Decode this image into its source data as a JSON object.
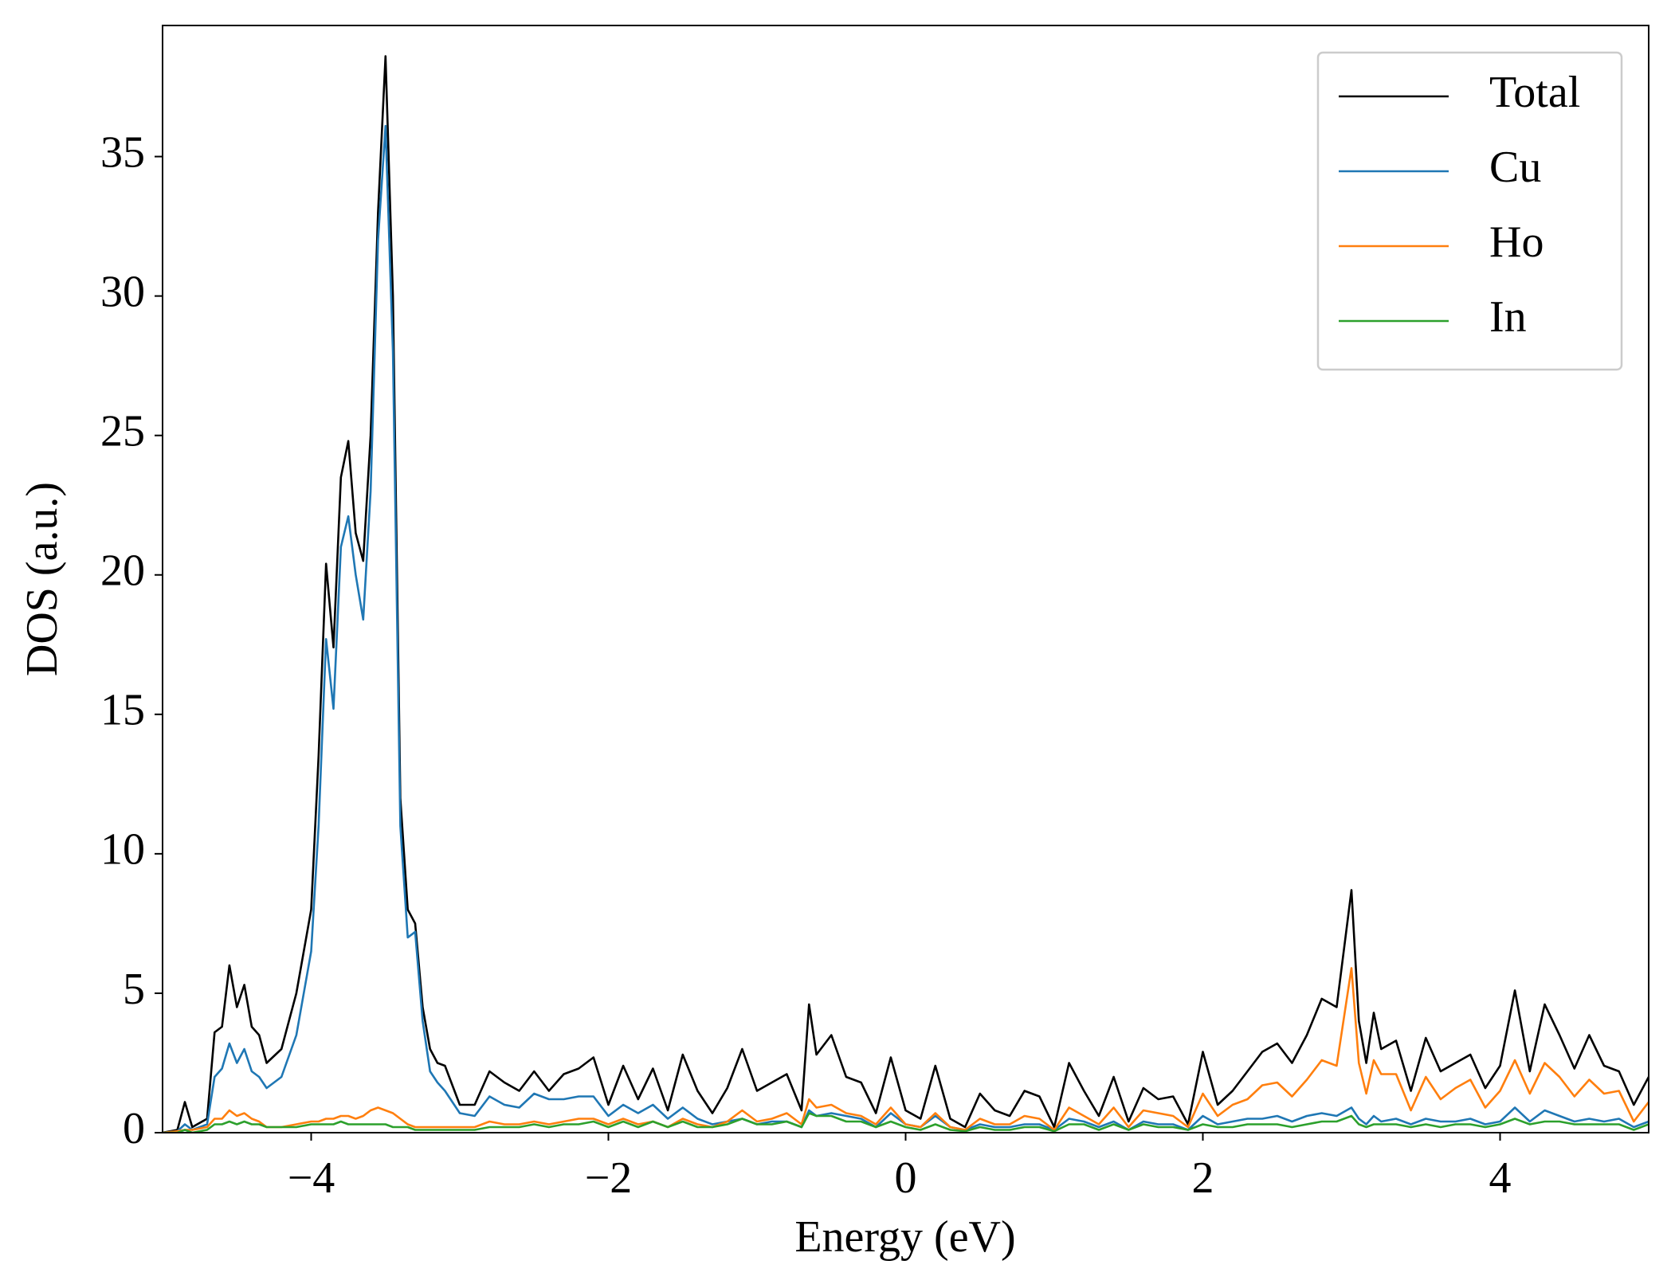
{
  "chart_data": {
    "type": "line",
    "xlabel": "Energy (eV)",
    "ylabel": "DOS (a.u.)",
    "xlim": [
      -5,
      5
    ],
    "ylim": [
      0,
      39.7
    ],
    "xticks": [
      {
        "value": -4,
        "label": "−4"
      },
      {
        "value": -2,
        "label": "−2"
      },
      0,
      2,
      4
    ],
    "yticks": [
      0,
      5,
      10,
      15,
      20,
      25,
      30,
      35
    ],
    "legend": "upper right",
    "x": [
      -5.0,
      -4.9,
      -4.85,
      -4.8,
      -4.7,
      -4.65,
      -4.6,
      -4.55,
      -4.5,
      -4.45,
      -4.4,
      -4.35,
      -4.3,
      -4.2,
      -4.1,
      -4.0,
      -3.95,
      -3.9,
      -3.85,
      -3.8,
      -3.75,
      -3.7,
      -3.65,
      -3.6,
      -3.55,
      -3.5,
      -3.45,
      -3.4,
      -3.35,
      -3.3,
      -3.25,
      -3.2,
      -3.15,
      -3.1,
      -3.0,
      -2.9,
      -2.8,
      -2.7,
      -2.6,
      -2.5,
      -2.4,
      -2.3,
      -2.2,
      -2.1,
      -2.0,
      -1.9,
      -1.8,
      -1.7,
      -1.6,
      -1.5,
      -1.4,
      -1.3,
      -1.2,
      -1.1,
      -1.0,
      -0.9,
      -0.8,
      -0.7,
      -0.65,
      -0.6,
      -0.5,
      -0.4,
      -0.3,
      -0.2,
      -0.1,
      0.0,
      0.1,
      0.2,
      0.3,
      0.4,
      0.5,
      0.6,
      0.7,
      0.8,
      0.9,
      1.0,
      1.1,
      1.2,
      1.3,
      1.4,
      1.5,
      1.6,
      1.7,
      1.8,
      1.9,
      2.0,
      2.1,
      2.2,
      2.3,
      2.4,
      2.5,
      2.6,
      2.7,
      2.8,
      2.9,
      3.0,
      3.05,
      3.1,
      3.15,
      3.2,
      3.3,
      3.4,
      3.5,
      3.6,
      3.7,
      3.8,
      3.9,
      4.0,
      4.1,
      4.2,
      4.3,
      4.4,
      4.5,
      4.6,
      4.7,
      4.8,
      4.9,
      5.0
    ],
    "series": [
      {
        "name": "Total",
        "color": "#000000",
        "values": [
          0,
          0.1,
          1.1,
          0.2,
          0.5,
          3.6,
          3.8,
          6.0,
          4.5,
          5.3,
          3.8,
          3.5,
          2.5,
          3.0,
          5.0,
          8.0,
          13.5,
          20.4,
          17.4,
          23.5,
          24.8,
          21.5,
          20.5,
          25,
          33,
          38.6,
          30,
          12,
          8.0,
          7.5,
          4.5,
          3.0,
          2.5,
          2.4,
          1.0,
          1.0,
          2.2,
          1.8,
          1.5,
          2.2,
          1.5,
          2.1,
          2.3,
          2.7,
          1.0,
          2.4,
          1.2,
          2.3,
          0.8,
          2.8,
          1.5,
          0.7,
          1.6,
          3.0,
          1.5,
          1.8,
          2.1,
          0.8,
          4.6,
          2.8,
          3.5,
          2.0,
          1.8,
          0.7,
          2.7,
          0.8,
          0.5,
          2.4,
          0.5,
          0.2,
          1.4,
          0.8,
          0.6,
          1.5,
          1.3,
          0.2,
          2.5,
          1.5,
          0.6,
          2.0,
          0.4,
          1.6,
          1.2,
          1.3,
          0.3,
          2.9,
          1.0,
          1.5,
          2.2,
          2.9,
          3.2,
          2.5,
          3.5,
          4.8,
          4.5,
          8.7,
          4.0,
          2.5,
          4.3,
          3.0,
          3.3,
          1.5,
          3.4,
          2.2,
          2.5,
          2.8,
          1.6,
          2.4,
          5.1,
          2.2,
          4.6,
          3.5,
          2.3,
          3.5,
          2.4,
          2.2,
          1.0,
          2.0
        ]
      },
      {
        "name": "Cu",
        "color": "#1f77b4",
        "values": [
          0,
          0.05,
          0.3,
          0.1,
          0.3,
          2.0,
          2.3,
          3.2,
          2.5,
          3.0,
          2.2,
          2.0,
          1.6,
          2.0,
          3.5,
          6.5,
          11,
          17.7,
          15.2,
          21,
          22.1,
          20,
          18.4,
          23,
          32,
          36.1,
          28,
          11,
          7.0,
          7.2,
          4.0,
          2.2,
          1.8,
          1.5,
          0.7,
          0.6,
          1.3,
          1.0,
          0.9,
          1.4,
          1.2,
          1.2,
          1.3,
          1.3,
          0.6,
          1.0,
          0.7,
          1.0,
          0.5,
          0.9,
          0.5,
          0.3,
          0.4,
          0.5,
          0.3,
          0.4,
          0.4,
          0.2,
          0.8,
          0.6,
          0.7,
          0.6,
          0.5,
          0.2,
          0.7,
          0.3,
          0.2,
          0.6,
          0.2,
          0.1,
          0.3,
          0.2,
          0.2,
          0.3,
          0.3,
          0.1,
          0.5,
          0.4,
          0.2,
          0.4,
          0.1,
          0.4,
          0.3,
          0.3,
          0.1,
          0.6,
          0.3,
          0.4,
          0.5,
          0.5,
          0.6,
          0.4,
          0.6,
          0.7,
          0.6,
          0.9,
          0.5,
          0.3,
          0.6,
          0.4,
          0.5,
          0.3,
          0.5,
          0.4,
          0.4,
          0.5,
          0.3,
          0.4,
          0.9,
          0.4,
          0.8,
          0.6,
          0.4,
          0.5,
          0.4,
          0.5,
          0.2,
          0.4
        ]
      },
      {
        "name": "Ho",
        "color": "#ff7f0e",
        "values": [
          0,
          0.05,
          0.1,
          0.1,
          0.2,
          0.5,
          0.5,
          0.8,
          0.6,
          0.7,
          0.5,
          0.4,
          0.2,
          0.2,
          0.3,
          0.4,
          0.4,
          0.5,
          0.5,
          0.6,
          0.6,
          0.5,
          0.6,
          0.8,
          0.9,
          0.8,
          0.7,
          0.5,
          0.3,
          0.2,
          0.2,
          0.2,
          0.2,
          0.2,
          0.2,
          0.2,
          0.4,
          0.3,
          0.3,
          0.4,
          0.3,
          0.4,
          0.5,
          0.5,
          0.3,
          0.5,
          0.3,
          0.4,
          0.2,
          0.5,
          0.3,
          0.2,
          0.4,
          0.8,
          0.4,
          0.5,
          0.7,
          0.3,
          1.2,
          0.9,
          1.0,
          0.7,
          0.6,
          0.3,
          0.9,
          0.3,
          0.2,
          0.7,
          0.2,
          0.1,
          0.5,
          0.3,
          0.3,
          0.6,
          0.5,
          0.1,
          0.9,
          0.6,
          0.3,
          0.9,
          0.2,
          0.8,
          0.7,
          0.6,
          0.2,
          1.4,
          0.6,
          1.0,
          1.2,
          1.7,
          1.8,
          1.3,
          1.9,
          2.6,
          2.4,
          5.9,
          2.5,
          1.4,
          2.6,
          2.1,
          2.1,
          0.8,
          2.0,
          1.2,
          1.6,
          1.9,
          0.9,
          1.5,
          2.6,
          1.4,
          2.5,
          2.0,
          1.3,
          1.9,
          1.4,
          1.5,
          0.4,
          1.1
        ]
      },
      {
        "name": "In",
        "color": "#2ca02c",
        "values": [
          0,
          0,
          0.1,
          0,
          0.1,
          0.3,
          0.3,
          0.4,
          0.3,
          0.4,
          0.3,
          0.3,
          0.2,
          0.2,
          0.2,
          0.3,
          0.3,
          0.3,
          0.3,
          0.4,
          0.3,
          0.3,
          0.3,
          0.3,
          0.3,
          0.3,
          0.2,
          0.2,
          0.2,
          0.1,
          0.1,
          0.1,
          0.1,
          0.1,
          0.1,
          0.1,
          0.2,
          0.2,
          0.2,
          0.3,
          0.2,
          0.3,
          0.3,
          0.4,
          0.2,
          0.4,
          0.2,
          0.4,
          0.2,
          0.4,
          0.2,
          0.2,
          0.3,
          0.5,
          0.3,
          0.3,
          0.4,
          0.2,
          0.7,
          0.6,
          0.6,
          0.4,
          0.4,
          0.2,
          0.4,
          0.2,
          0.1,
          0.3,
          0.1,
          0.05,
          0.2,
          0.1,
          0.1,
          0.2,
          0.2,
          0.05,
          0.3,
          0.3,
          0.1,
          0.3,
          0.1,
          0.3,
          0.2,
          0.2,
          0.1,
          0.3,
          0.2,
          0.2,
          0.3,
          0.3,
          0.3,
          0.2,
          0.3,
          0.4,
          0.4,
          0.6,
          0.3,
          0.2,
          0.3,
          0.3,
          0.3,
          0.2,
          0.3,
          0.2,
          0.3,
          0.3,
          0.2,
          0.3,
          0.5,
          0.3,
          0.4,
          0.4,
          0.3,
          0.3,
          0.3,
          0.3,
          0.1,
          0.3
        ]
      }
    ]
  }
}
